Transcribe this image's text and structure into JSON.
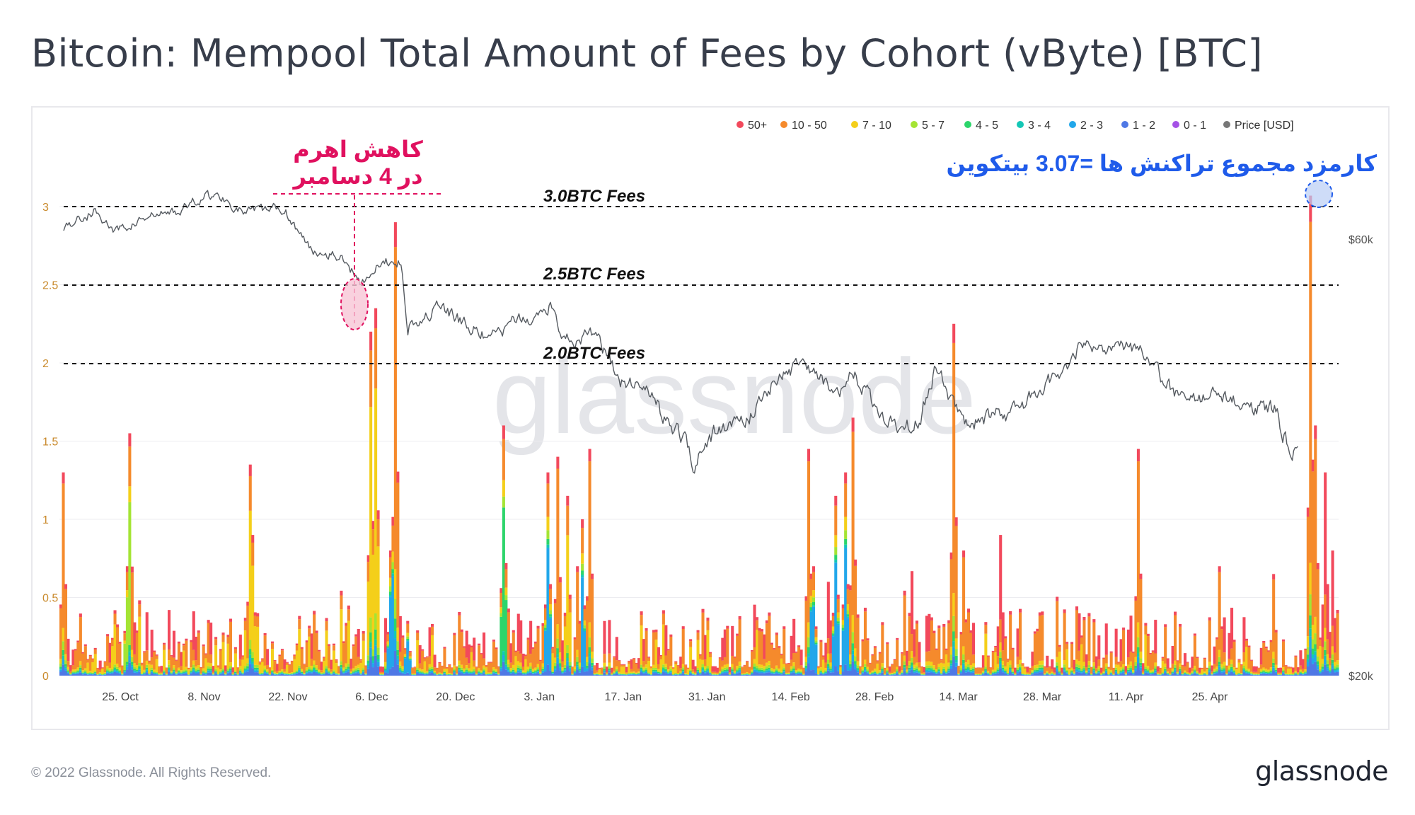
{
  "title": "Bitcoin: Mempool Total Amount of Fees by Cohort (vByte) [BTC]",
  "footer": {
    "copyright": "© 2022 Glassnode. All Rights Reserved.",
    "logo": "glassnode"
  },
  "watermark": "glassnode",
  "chart_data": {
    "type": "area",
    "title": "Bitcoin: Mempool Total Amount of Fees by Cohort (vByte) [BTC]",
    "xlabel": "",
    "ylabel": "",
    "x_ticks": [
      "25. Oct",
      "8. Nov",
      "22. Nov",
      "6. Dec",
      "20. Dec",
      "3. Jan",
      "17. Jan",
      "31. Jan",
      "14. Feb",
      "28. Feb",
      "14. Mar",
      "28. Mar",
      "11. Apr",
      "25. Apr"
    ],
    "y_ticks": [
      "0",
      "0.5",
      "1",
      "1.5",
      "2",
      "2.5",
      "3"
    ],
    "ylim": [
      0,
      3.2
    ],
    "y2_ticks": [
      "$20k",
      "$60k"
    ],
    "y2lim": [
      20000,
      70000
    ],
    "grid": true,
    "legend_position": "top-right",
    "legend": [
      {
        "label": "50+",
        "color": "#f2495c"
      },
      {
        "label": "10 - 50",
        "color": "#f58a2c"
      },
      {
        "label": "7 - 10",
        "color": "#f4cf1a"
      },
      {
        "label": "5 - 7",
        "color": "#a4e434"
      },
      {
        "label": "4 - 5",
        "color": "#2cd56b"
      },
      {
        "label": "3 - 4",
        "color": "#14c7b6"
      },
      {
        "label": "2 - 3",
        "color": "#22a7ea"
      },
      {
        "label": "1 - 2",
        "color": "#4f78e5"
      },
      {
        "label": "0 - 1",
        "color": "#a552e6"
      },
      {
        "label": "Price [USD]",
        "color": "#777777"
      }
    ],
    "cohort_order": [
      "1 - 2",
      "2 - 3",
      "3 - 4",
      "4 - 5",
      "5 - 7",
      "7 - 10",
      "10 - 50",
      "50+"
    ],
    "cohort_colors": [
      "#4f78e5",
      "#22a7ea",
      "#14c7b6",
      "#2cd56b",
      "#a4e434",
      "#f4cf1a",
      "#f58a2c",
      "#f2495c"
    ],
    "spikes": [
      {
        "x": 0.1,
        "total": 1.3,
        "dom": 6
      },
      {
        "x": 2.55,
        "total": 1.55,
        "dom": 6
      },
      {
        "x": 2.5,
        "total": 0.7,
        "dom": 4
      },
      {
        "x": 7.1,
        "total": 1.35,
        "dom": 6
      },
      {
        "x": 7.2,
        "total": 0.9,
        "dom": 5
      },
      {
        "x": 11.6,
        "total": 2.2,
        "dom": 5
      },
      {
        "x": 11.8,
        "total": 2.35,
        "dom": 5
      },
      {
        "x": 12.5,
        "total": 2.9,
        "dom": 6
      },
      {
        "x": 12.3,
        "total": 0.8,
        "dom": 1
      },
      {
        "x": 13.0,
        "total": 0.35,
        "dom": 1
      },
      {
        "x": 16.6,
        "total": 1.6,
        "dom": 3
      },
      {
        "x": 18.25,
        "total": 1.3,
        "dom": 1
      },
      {
        "x": 18.6,
        "total": 1.4,
        "dom": 6
      },
      {
        "x": 19.0,
        "total": 1.15,
        "dom": 5
      },
      {
        "x": 19.5,
        "total": 1.0,
        "dom": 1
      },
      {
        "x": 19.8,
        "total": 1.45,
        "dom": 6
      },
      {
        "x": 19.3,
        "total": 0.7,
        "dom": 6
      },
      {
        "x": 28.0,
        "total": 1.45,
        "dom": 6
      },
      {
        "x": 28.2,
        "total": 0.7,
        "dom": 1
      },
      {
        "x": 29.0,
        "total": 1.15,
        "dom": 1
      },
      {
        "x": 29.4,
        "total": 1.3,
        "dom": 1
      },
      {
        "x": 29.7,
        "total": 1.65,
        "dom": 6
      },
      {
        "x": 28.7,
        "total": 0.6,
        "dom": 7
      },
      {
        "x": 33.45,
        "total": 2.25,
        "dom": 6
      },
      {
        "x": 33.8,
        "total": 0.8,
        "dom": 6
      },
      {
        "x": 35.2,
        "total": 0.9,
        "dom": 7
      },
      {
        "x": 40.3,
        "total": 1.45,
        "dom": 6
      },
      {
        "x": 43.4,
        "total": 0.7,
        "dom": 6
      },
      {
        "x": 46.8,
        "total": 3.07,
        "dom": 6
      },
      {
        "x": 47.0,
        "total": 1.6,
        "dom": 6
      },
      {
        "x": 47.3,
        "total": 1.3,
        "dom": 7
      },
      {
        "x": 47.6,
        "total": 0.8,
        "dom": 7
      },
      {
        "x": 45.4,
        "total": 0.65,
        "dom": 6
      }
    ],
    "price_keypoints": [
      [
        0,
        62000
      ],
      [
        0.8,
        63500
      ],
      [
        1.2,
        64500
      ],
      [
        2.0,
        61000
      ],
      [
        3.0,
        63000
      ],
      [
        4.5,
        64500
      ],
      [
        5.5,
        67000
      ],
      [
        6.2,
        66500
      ],
      [
        7.0,
        64000
      ],
      [
        8.5,
        65000
      ],
      [
        9.5,
        58500
      ],
      [
        10.5,
        58000
      ],
      [
        11.5,
        54000
      ],
      [
        12.4,
        56500
      ],
      [
        13.0,
        57000
      ],
      [
        13.3,
        48500
      ],
      [
        14.5,
        50500
      ],
      [
        15.5,
        48500
      ],
      [
        16.5,
        46500
      ],
      [
        17.5,
        49000
      ],
      [
        18.0,
        48500
      ],
      [
        18.8,
        51000
      ],
      [
        19.3,
        47000
      ],
      [
        20.0,
        46500
      ],
      [
        20.5,
        47500
      ],
      [
        21.5,
        42000
      ],
      [
        22.5,
        41500
      ],
      [
        23.5,
        37000
      ],
      [
        24.0,
        36500
      ],
      [
        24.3,
        34000
      ],
      [
        24.9,
        36500
      ],
      [
        25.8,
        37500
      ],
      [
        26.5,
        38500
      ],
      [
        27.5,
        42000
      ],
      [
        28.5,
        44000
      ],
      [
        29.3,
        42000
      ],
      [
        30.0,
        41500
      ],
      [
        30.5,
        43000
      ],
      [
        31.3,
        39500
      ],
      [
        32.0,
        38000
      ],
      [
        32.5,
        37500
      ],
      [
        33.1,
        38000
      ],
      [
        33.7,
        43500
      ],
      [
        34.3,
        40000
      ],
      [
        35.0,
        37500
      ],
      [
        36.0,
        38500
      ],
      [
        36.8,
        39000
      ],
      [
        37.5,
        40500
      ],
      [
        38.0,
        41500
      ],
      [
        38.8,
        44000
      ],
      [
        39.5,
        46500
      ],
      [
        40.3,
        45500
      ],
      [
        41.0,
        46000
      ],
      [
        41.9,
        45000
      ],
      [
        42.5,
        42000
      ],
      [
        43.2,
        40000
      ],
      [
        44.5,
        40500
      ],
      [
        45.5,
        39500
      ],
      [
        46.5,
        38800
      ],
      [
        46.8,
        39500
      ],
      [
        47.1,
        37000
      ],
      [
        47.4,
        35500
      ],
      [
        47.7,
        34500
      ]
    ]
  },
  "annotations": {
    "left_label_line1": "کاهش اهرم",
    "left_label_line2": "در 4 دسامبر",
    "right_label": "کارمزد مجموع تراکنش ها =3.07 بیتکوین",
    "level_3": "3.0BTC Fees",
    "level_25": "2.5BTC Fees",
    "level_2": "2.0BTC Fees"
  }
}
